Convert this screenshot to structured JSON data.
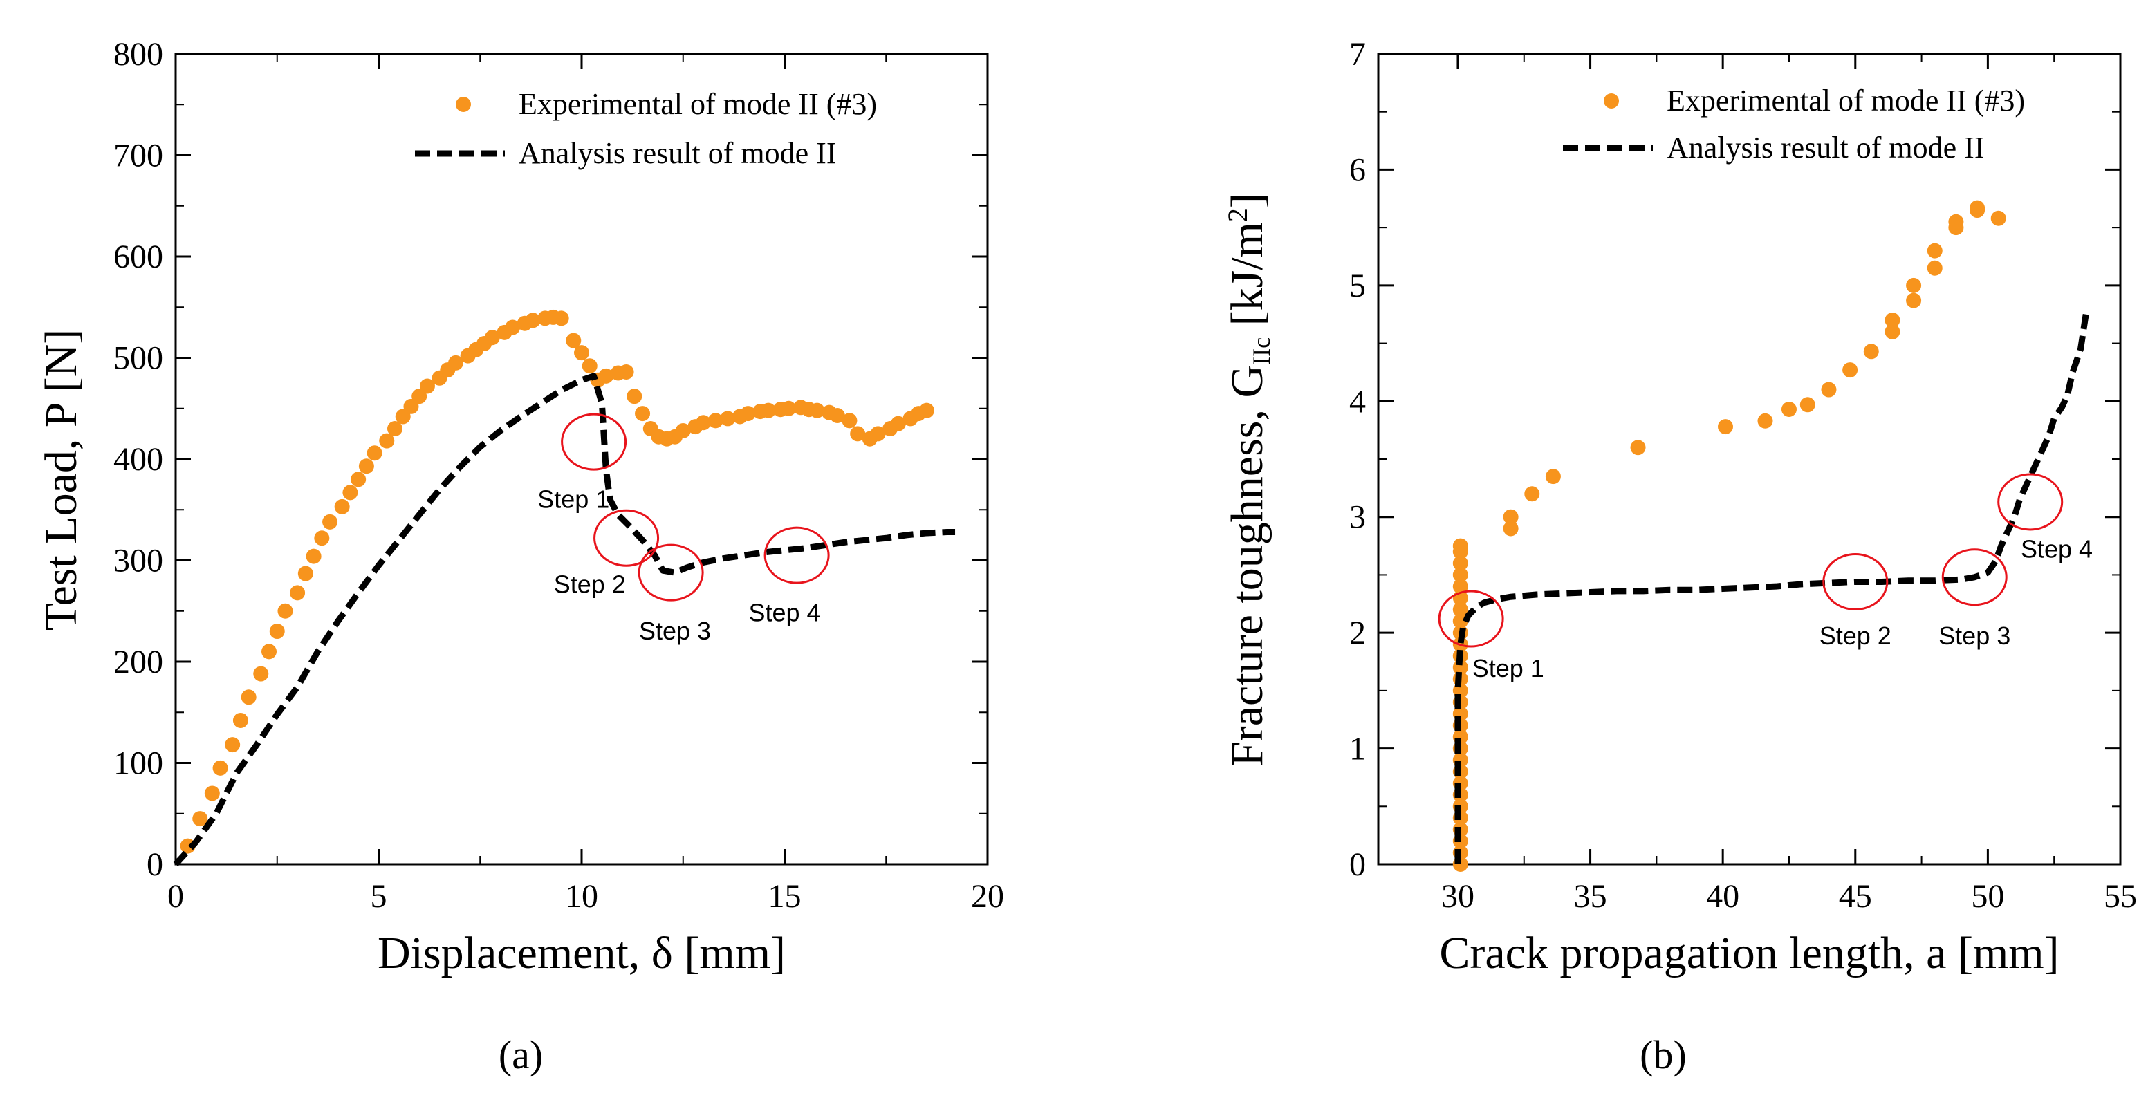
{
  "charts": [
    {
      "id": "a",
      "type": "scatter",
      "panel_label": "(a)",
      "xlabel": "Displacement, δ [mm]",
      "ylabel": "Test Load, P [N]",
      "xlim": [
        0,
        20
      ],
      "ylim": [
        0,
        800
      ],
      "xticks": [
        0,
        5,
        10,
        15,
        20
      ],
      "yticks": [
        0,
        100,
        200,
        300,
        400,
        500,
        600,
        700,
        800
      ],
      "legend": [
        "Experimental of mode II (#3)",
        "Analysis result of mode II"
      ],
      "series": [
        {
          "name": "Experimental of mode II (#3)",
          "style": "markers",
          "color": "#f7941d",
          "x": [
            0.3,
            0.6,
            0.9,
            1.1,
            1.4,
            1.6,
            1.8,
            2.1,
            2.3,
            2.5,
            2.7,
            3.0,
            3.2,
            3.4,
            3.6,
            3.8,
            4.1,
            4.3,
            4.5,
            4.7,
            4.9,
            5.2,
            5.4,
            5.6,
            5.8,
            6.0,
            6.2,
            6.5,
            6.7,
            6.9,
            7.2,
            7.4,
            7.6,
            7.8,
            8.1,
            8.3,
            8.6,
            8.8,
            9.1,
            9.3,
            9.5,
            9.8,
            10.0,
            10.2,
            10.4,
            10.6,
            10.9,
            11.1,
            11.3,
            11.5,
            11.7,
            11.9,
            12.1,
            12.3,
            12.5,
            12.8,
            13.0,
            13.3,
            13.6,
            13.9,
            14.1,
            14.4,
            14.6,
            14.9,
            15.1,
            15.4,
            15.6,
            15.8,
            16.1,
            16.3,
            16.6,
            16.8,
            17.1,
            17.3,
            17.6,
            17.8,
            18.1,
            18.3,
            18.5
          ],
          "y": [
            18,
            45,
            70,
            95,
            118,
            142,
            165,
            188,
            210,
            230,
            250,
            268,
            287,
            304,
            322,
            338,
            353,
            367,
            380,
            393,
            406,
            418,
            430,
            442,
            452,
            462,
            472,
            480,
            488,
            495,
            502,
            508,
            514,
            520,
            525,
            530,
            534,
            537,
            539,
            540,
            539,
            517,
            505,
            492,
            478,
            482,
            485,
            486,
            462,
            445,
            430,
            422,
            420,
            422,
            428,
            432,
            436,
            438,
            440,
            442,
            445,
            447,
            448,
            449,
            450,
            451,
            449,
            448,
            446,
            443,
            438,
            425,
            420,
            425,
            430,
            435,
            440,
            445,
            448
          ],
          "x_shift": [
            0,
            0,
            0,
            0,
            0,
            0,
            0,
            0,
            0,
            0,
            0,
            0,
            0,
            0,
            0,
            0,
            0,
            0,
            0,
            0,
            0,
            0,
            0,
            0,
            0,
            0,
            0,
            0,
            0,
            0,
            0,
            0,
            0,
            0,
            0,
            0,
            0,
            0,
            0,
            0,
            0,
            0,
            0,
            0,
            0,
            0,
            0,
            0,
            0,
            0,
            0,
            0,
            0,
            0,
            0,
            0,
            0,
            0,
            0,
            0,
            0,
            0,
            0,
            0,
            0,
            0,
            0,
            0,
            0,
            0,
            0,
            0,
            0,
            0,
            0,
            0,
            0,
            0,
            0
          ]
        },
        {
          "name": "Analysis result of mode II",
          "style": "dashed",
          "color": "#000000",
          "x": [
            0,
            0.5,
            1.0,
            1.5,
            2.0,
            2.5,
            3.0,
            3.5,
            4.0,
            4.5,
            5.0,
            5.5,
            6.0,
            6.5,
            7.0,
            7.5,
            8.0,
            8.5,
            9.0,
            9.5,
            10.0,
            10.3,
            10.5,
            10.6,
            10.7,
            10.9,
            11.2,
            11.5,
            11.8,
            12.0,
            12.3,
            12.6,
            13.0,
            13.5,
            14.0,
            14.5,
            15.0,
            15.5,
            16.0,
            16.5,
            17.0,
            17.5,
            18.0,
            18.5,
            19.0,
            19.2
          ],
          "y": [
            0,
            22,
            50,
            90,
            118,
            148,
            175,
            210,
            240,
            268,
            295,
            320,
            345,
            370,
            392,
            412,
            428,
            442,
            455,
            468,
            478,
            482,
            455,
            390,
            360,
            345,
            333,
            320,
            305,
            290,
            288,
            293,
            298,
            302,
            305,
            308,
            310,
            312,
            315,
            318,
            320,
            322,
            325,
            327,
            328,
            328
          ]
        }
      ],
      "annotations": [
        {
          "text": "Step 1",
          "x": 9.8,
          "y": 352,
          "circle_x": 10.3,
          "circle_y": 417
        },
        {
          "text": "Step 2",
          "x": 10.2,
          "y": 268,
          "circle_x": 11.1,
          "circle_y": 322
        },
        {
          "text": "Step 3",
          "x": 12.3,
          "y": 222,
          "circle_x": 12.2,
          "circle_y": 288
        },
        {
          "text": "Step 4",
          "x": 15.0,
          "y": 240,
          "circle_x": 15.3,
          "circle_y": 305
        }
      ]
    },
    {
      "id": "b",
      "type": "scatter",
      "panel_label": "(b)",
      "xlabel": "Crack propagation length, a [mm]",
      "ylabel": "Fracture toughness, G",
      "ylabel_sub": "IIc",
      "ylabel_unit": "[kJ/m",
      "ylabel_sup": "2",
      "ylabel_end": "]",
      "xlim": [
        27,
        55
      ],
      "ylim": [
        0,
        7
      ],
      "xticks": [
        30,
        35,
        40,
        45,
        50,
        55
      ],
      "yticks": [
        0,
        1,
        2,
        3,
        4,
        5,
        6,
        7
      ],
      "legend": [
        "Experimental of mode II (#3)",
        "Analysis result of mode II"
      ],
      "series": [
        {
          "name": "Experimental of mode II (#3)",
          "style": "markers",
          "color": "#f7941d",
          "x": [
            30.1,
            30.1,
            30.1,
            30.1,
            30.1,
            30.1,
            30.1,
            30.1,
            30.1,
            30.1,
            30.1,
            30.1,
            30.1,
            30.1,
            30.1,
            30.1,
            30.1,
            30.1,
            30.1,
            30.1,
            30.1,
            30.1,
            30.1,
            30.1,
            30.1,
            30.1,
            30.1,
            30.1,
            30.1,
            32.0,
            32.0,
            32.8,
            33.6,
            36.8,
            40.1,
            41.6,
            42.5,
            43.2,
            44.0,
            44.8,
            45.6,
            46.4,
            46.4,
            47.2,
            47.2,
            48.0,
            48.0,
            48.8,
            48.8,
            49.6,
            49.6,
            50.4
          ],
          "y": [
            0.0,
            0.1,
            0.2,
            0.3,
            0.4,
            0.5,
            0.6,
            0.7,
            0.8,
            0.9,
            1.0,
            1.1,
            1.2,
            1.3,
            1.4,
            1.5,
            1.6,
            1.7,
            1.8,
            1.9,
            2.0,
            2.1,
            2.2,
            2.3,
            2.4,
            2.5,
            2.6,
            2.7,
            2.75,
            2.9,
            3.0,
            3.2,
            3.35,
            3.6,
            3.78,
            3.83,
            3.93,
            3.97,
            4.1,
            4.27,
            4.43,
            4.6,
            4.7,
            4.87,
            5.0,
            5.15,
            5.3,
            5.5,
            5.55,
            5.65,
            5.67,
            5.58
          ]
        },
        {
          "name": "Analysis result of mode II",
          "style": "dashed",
          "color": "#000000",
          "x": [
            30.0,
            30.0,
            30.0,
            30.0,
            30.1,
            30.2,
            30.4,
            30.7,
            31.0,
            31.5,
            32.0,
            33.0,
            34.0,
            35.0,
            36.0,
            37.0,
            38.0,
            39.0,
            40.0,
            41.0,
            42.0,
            43.0,
            44.0,
            45.0,
            46.0,
            47.0,
            48.0,
            49.0,
            49.5,
            50.0,
            50.3,
            50.5,
            50.8,
            51.0,
            51.2,
            51.5,
            51.8,
            52.0,
            52.3,
            52.5,
            52.8,
            53.0,
            53.2,
            53.5,
            53.7
          ],
          "y": [
            0.0,
            0.5,
            1.0,
            1.5,
            1.9,
            2.05,
            2.15,
            2.22,
            2.26,
            2.29,
            2.31,
            2.33,
            2.34,
            2.35,
            2.36,
            2.36,
            2.37,
            2.37,
            2.38,
            2.39,
            2.4,
            2.42,
            2.43,
            2.44,
            2.44,
            2.45,
            2.45,
            2.46,
            2.48,
            2.52,
            2.62,
            2.75,
            2.9,
            3.0,
            3.15,
            3.3,
            3.45,
            3.55,
            3.7,
            3.85,
            3.95,
            4.05,
            4.25,
            4.45,
            4.75
          ]
        }
      ],
      "annotations": [
        {
          "text": "Step 1",
          "x": 31.9,
          "y": 1.62,
          "circle_x": 30.5,
          "circle_y": 2.12
        },
        {
          "text": "Step 2",
          "x": 45.0,
          "y": 1.9,
          "circle_x": 45.0,
          "circle_y": 2.44
        },
        {
          "text": "Step 3",
          "x": 49.5,
          "y": 1.9,
          "circle_x": 49.5,
          "circle_y": 2.48
        },
        {
          "text": "Step 4",
          "x": 52.6,
          "y": 2.65,
          "circle_x": 51.6,
          "circle_y": 3.13
        }
      ]
    }
  ]
}
